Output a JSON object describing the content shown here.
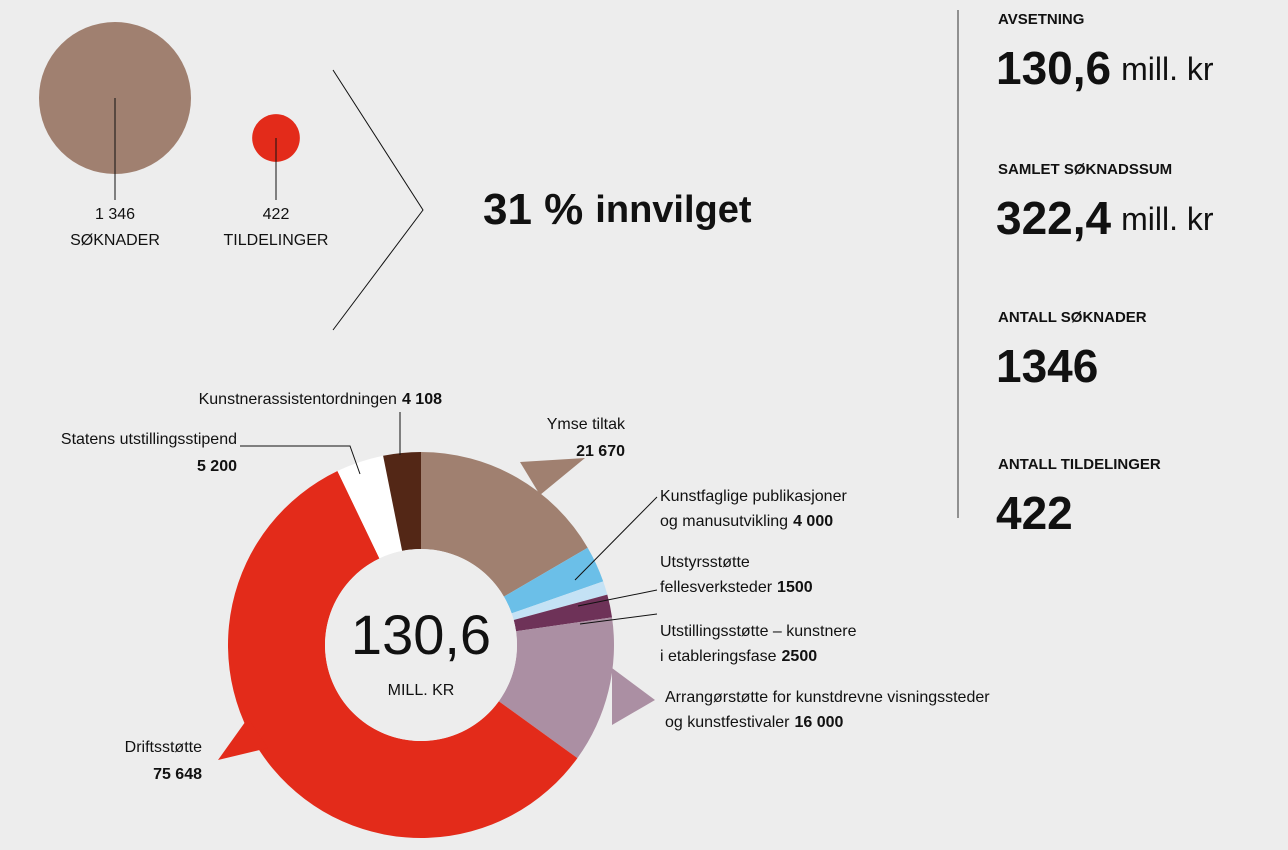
{
  "chart_data": [
    {
      "type": "bubble",
      "categories": [
        "SØKNADER",
        "TILDELINGER"
      ],
      "values": [
        1346,
        422
      ],
      "value_labels": [
        "1 346",
        "422"
      ],
      "colors": [
        "#a08070",
        "#e32b1a"
      ]
    },
    {
      "type": "donut",
      "center_value": "130,6",
      "center_label": "MILL. KR",
      "categories": [
        [
          "Ymse tiltak"
        ],
        [
          "Kunstfaglige publikasjoner",
          "og manusutvikling"
        ],
        [
          "Utstyrsstøtte",
          "fellesverksteder"
        ],
        [
          "Utstillingsstøtte – kunstnere",
          "i etableringsfase"
        ],
        [
          "Arrangørstøtte for kunstdrevne visningssteder",
          "og kunstfestivaler"
        ],
        [
          "Driftsstøtte"
        ],
        [
          "Statens utstillingsstipend"
        ],
        [
          "Kunstnerassistentordningen"
        ]
      ],
      "values": [
        21670,
        4000,
        1500,
        2500,
        16000,
        75648,
        5200,
        4108
      ],
      "value_labels": [
        "21 670",
        "4 000",
        "1500",
        "2500",
        "16 000",
        "75 648",
        "5 200",
        "4 108"
      ],
      "colors": [
        "#a08070",
        "#6bbfe8",
        "#c4e2f5",
        "#6e3258",
        "#ab8fa3",
        "#e32b1a",
        "#ffffff",
        "#532716"
      ]
    }
  ],
  "headline": {
    "value": "31 %",
    "label": "innvilget"
  },
  "stats": [
    {
      "label": "AVSETNING",
      "value": "130,6",
      "unit": "mill. kr"
    },
    {
      "label": "SAMLET SØKNADSSUM",
      "value": "322,4",
      "unit": "mill. kr"
    },
    {
      "label": "ANTALL SØKNADER",
      "value": "1346"
    },
    {
      "label": "ANTALL TILDELINGER",
      "value": "422"
    }
  ]
}
